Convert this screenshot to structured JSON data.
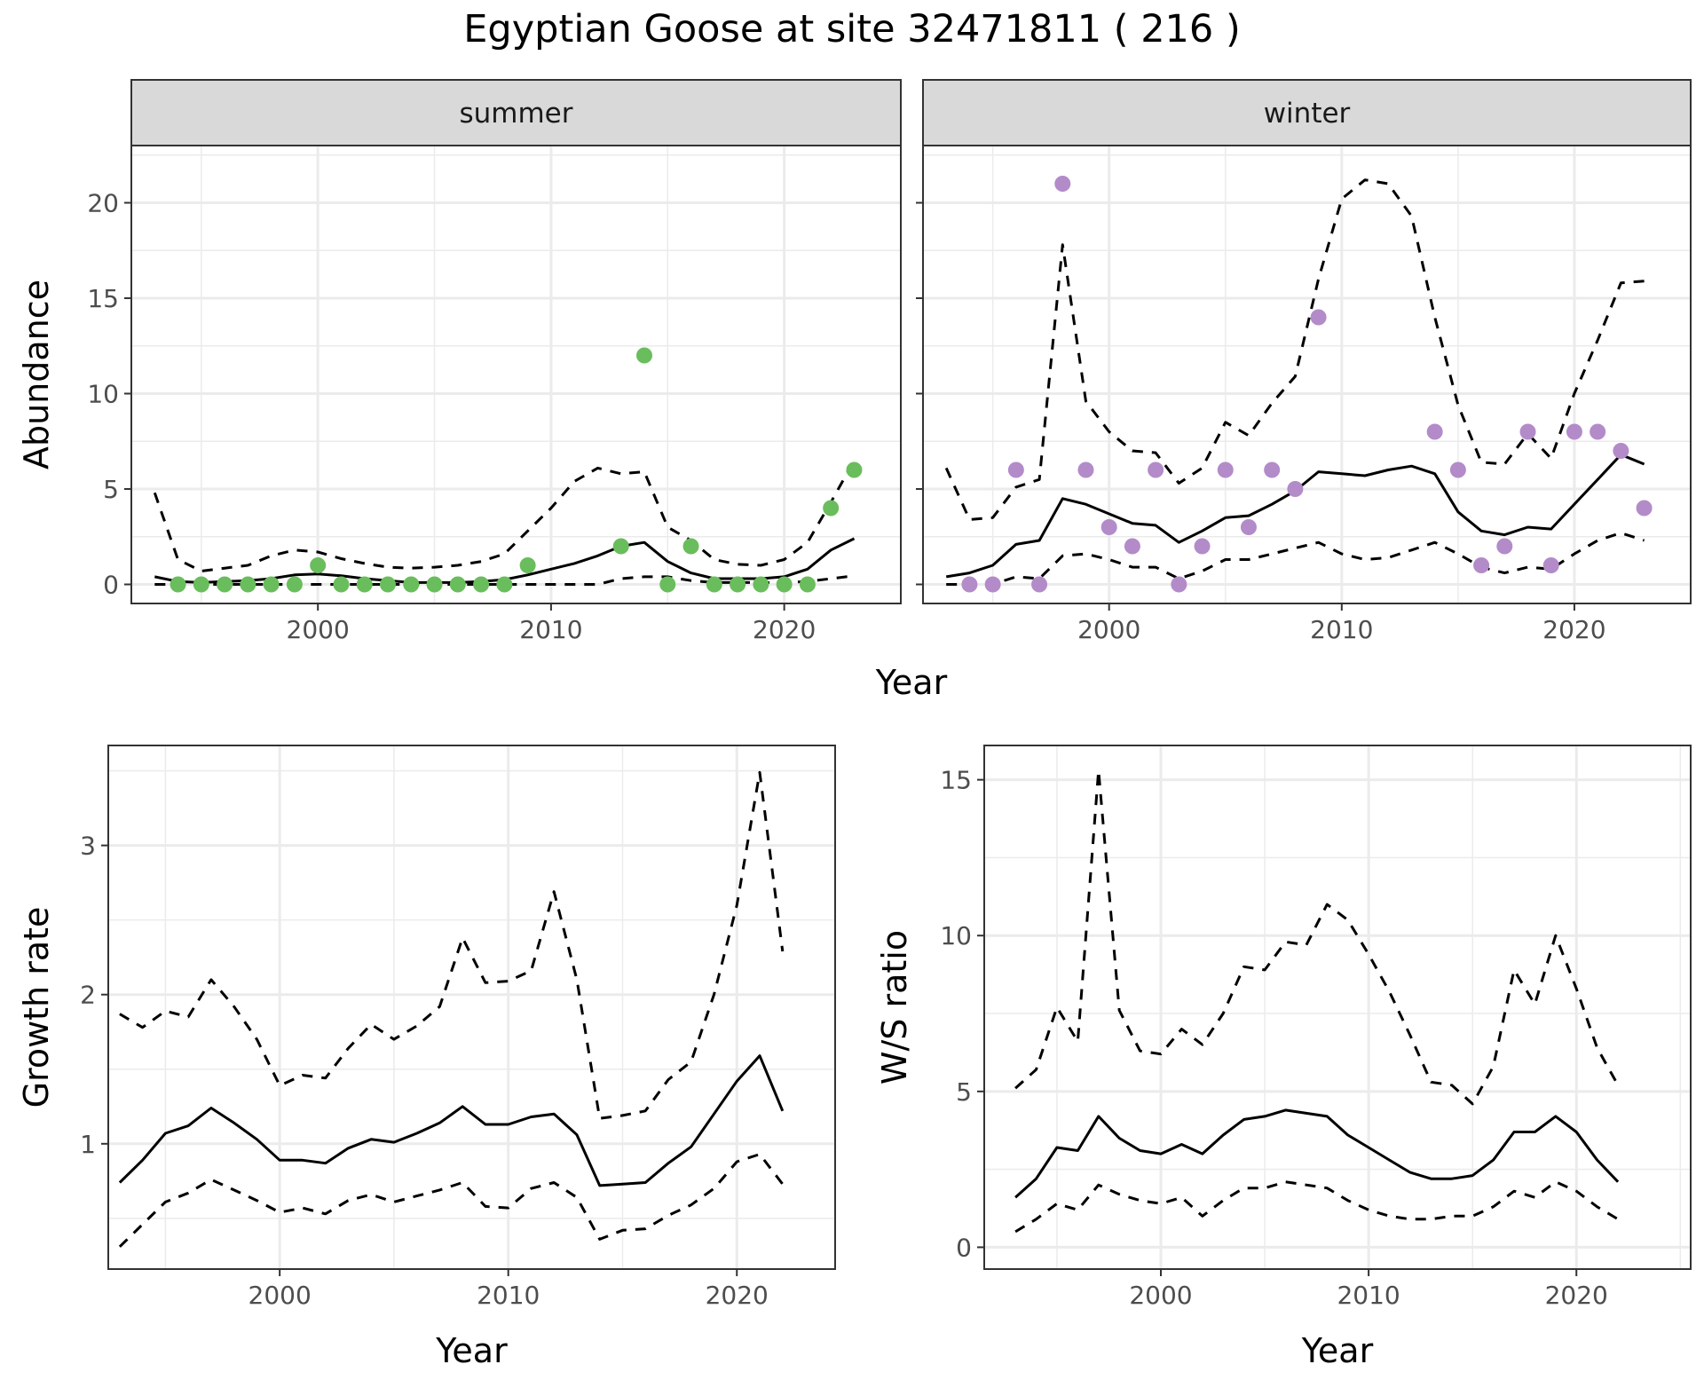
{
  "figure_title": "Egyptian Goose at site 32471811 ( 216 )",
  "colors": {
    "summer_points": "#6ABD5C",
    "winter_points": "#B38BC9",
    "grid": "#EBEBEB",
    "strip_bg": "#D9D9D9",
    "lines": "#000000"
  },
  "chart_data": [
    {
      "type": "line",
      "facet": "summer",
      "xlabel": "Year",
      "ylabel": "Abundance",
      "xlim": [
        1992,
        2025
      ],
      "ylim": [
        -1,
        23
      ],
      "xticks": [
        2000,
        2010,
        2020
      ],
      "yticks": [
        0,
        5,
        10,
        15,
        20
      ],
      "point_color": "#6ABD5C",
      "points": {
        "x": [
          1994,
          1995,
          1996,
          1997,
          1998,
          1999,
          2000,
          2001,
          2002,
          2003,
          2004,
          2005,
          2006,
          2007,
          2008,
          2009,
          2013,
          2014,
          2015,
          2016,
          2017,
          2018,
          2019,
          2020,
          2021,
          2022,
          2023
        ],
        "y": [
          0,
          0,
          0,
          0,
          0,
          0,
          1,
          0,
          0,
          0,
          0,
          0,
          0,
          0,
          0,
          1,
          2,
          12,
          0,
          2,
          0,
          0,
          0,
          0,
          0,
          4,
          6
        ]
      },
      "x": [
        1993,
        1994,
        1995,
        1996,
        1997,
        1998,
        1999,
        2000,
        2001,
        2002,
        2003,
        2004,
        2005,
        2006,
        2007,
        2008,
        2009,
        2010,
        2011,
        2012,
        2013,
        2014,
        2015,
        2016,
        2017,
        2018,
        2019,
        2020,
        2021,
        2022,
        2023
      ],
      "fit": [
        0.4,
        0.15,
        0.1,
        0.15,
        0.2,
        0.3,
        0.5,
        0.55,
        0.45,
        0.3,
        0.2,
        0.1,
        0.1,
        0.1,
        0.15,
        0.25,
        0.5,
        0.8,
        1.1,
        1.5,
        2.0,
        2.2,
        1.2,
        0.6,
        0.3,
        0.3,
        0.3,
        0.4,
        0.8,
        1.8,
        2.4
      ],
      "upper": [
        4.8,
        1.3,
        0.7,
        0.85,
        1.0,
        1.5,
        1.8,
        1.7,
        1.35,
        1.1,
        0.9,
        0.85,
        0.9,
        1.0,
        1.2,
        1.6,
        2.8,
        4.0,
        5.4,
        6.1,
        5.8,
        5.9,
        3.0,
        2.3,
        1.3,
        1.05,
        1.0,
        1.3,
        2.2,
        4.3,
        6.5
      ],
      "lower": [
        0,
        0,
        0,
        0,
        0,
        0,
        0,
        0,
        0,
        0,
        0,
        0,
        0,
        0,
        0,
        0,
        0,
        0,
        0,
        0,
        0.3,
        0.4,
        0.4,
        0.2,
        0.1,
        0.1,
        0.1,
        0.1,
        0.15,
        0.3,
        0.45
      ]
    },
    {
      "type": "line",
      "facet": "winter",
      "xlabel": "Year",
      "ylabel": "Abundance",
      "xlim": [
        1992,
        2025
      ],
      "ylim": [
        -1,
        23
      ],
      "xticks": [
        2000,
        2010,
        2020
      ],
      "yticks": [
        0,
        5,
        10,
        15,
        20
      ],
      "point_color": "#B38BC9",
      "points": {
        "x": [
          1994,
          1995,
          1996,
          1997,
          1998,
          1999,
          2000,
          2001,
          2002,
          2003,
          2004,
          2005,
          2006,
          2007,
          2008,
          2009,
          2014,
          2015,
          2016,
          2017,
          2018,
          2019,
          2020,
          2021,
          2022,
          2023
        ],
        "y": [
          0,
          0,
          6,
          0,
          21,
          6,
          3,
          2,
          6,
          0,
          2,
          6,
          3,
          6,
          5,
          14,
          8,
          6,
          1,
          2,
          8,
          1,
          8,
          8,
          7,
          4
        ]
      },
      "x": [
        1993,
        1994,
        1995,
        1996,
        1997,
        1998,
        1999,
        2000,
        2001,
        2002,
        2003,
        2004,
        2005,
        2006,
        2007,
        2008,
        2009,
        2010,
        2011,
        2012,
        2013,
        2014,
        2015,
        2016,
        2017,
        2018,
        2019,
        2020,
        2021,
        2022,
        2023
      ],
      "fit": [
        0.4,
        0.6,
        1.0,
        2.1,
        2.3,
        4.5,
        4.2,
        3.7,
        3.2,
        3.1,
        2.2,
        2.8,
        3.5,
        3.6,
        4.2,
        4.9,
        5.9,
        5.8,
        5.7,
        6.0,
        6.2,
        5.8,
        3.8,
        2.8,
        2.6,
        3.0,
        2.9,
        4.2,
        5.5,
        6.8,
        6.3
      ],
      "upper": [
        6.1,
        3.4,
        3.5,
        5.1,
        5.5,
        17.8,
        9.6,
        8.0,
        7.0,
        6.9,
        5.3,
        6.1,
        8.5,
        7.8,
        9.5,
        10.9,
        16.0,
        20.2,
        21.2,
        21.0,
        19.3,
        14.0,
        9.4,
        6.4,
        6.3,
        7.9,
        6.6,
        10.0,
        12.8,
        15.8,
        15.9
      ],
      "lower": [
        0,
        0,
        0,
        0.4,
        0.3,
        1.5,
        1.6,
        1.3,
        0.9,
        0.9,
        0.3,
        0.7,
        1.3,
        1.3,
        1.6,
        1.9,
        2.2,
        1.6,
        1.3,
        1.4,
        1.8,
        2.2,
        1.6,
        0.9,
        0.6,
        0.9,
        0.8,
        1.6,
        2.3,
        2.7,
        2.3
      ]
    },
    {
      "type": "line",
      "xlabel": "Year",
      "ylabel": "Growth rate",
      "xlim": [
        1992.5,
        2024.3
      ],
      "ylim": [
        0.16,
        3.67
      ],
      "xticks": [
        2000,
        2010,
        2020
      ],
      "yticks": [
        1,
        2,
        3
      ],
      "x": [
        1993,
        1994,
        1995,
        1996,
        1997,
        1998,
        1999,
        2000,
        2001,
        2002,
        2003,
        2004,
        2005,
        2006,
        2007,
        2008,
        2009,
        2010,
        2011,
        2012,
        2013,
        2014,
        2015,
        2016,
        2017,
        2018,
        2019,
        2020,
        2021,
        2022
      ],
      "fit": [
        0.74,
        0.89,
        1.07,
        1.12,
        1.24,
        1.14,
        1.03,
        0.89,
        0.89,
        0.87,
        0.97,
        1.03,
        1.01,
        1.07,
        1.14,
        1.25,
        1.13,
        1.13,
        1.18,
        1.2,
        1.06,
        0.72,
        0.73,
        0.74,
        0.87,
        0.98,
        1.2,
        1.42,
        1.59,
        1.22
      ],
      "upper": [
        1.87,
        1.78,
        1.89,
        1.85,
        2.1,
        1.92,
        1.7,
        1.39,
        1.46,
        1.44,
        1.64,
        1.8,
        1.7,
        1.79,
        1.92,
        2.38,
        2.08,
        2.09,
        2.16,
        2.69,
        2.1,
        1.17,
        1.19,
        1.22,
        1.43,
        1.55,
        2.0,
        2.6,
        3.49,
        2.29
      ],
      "lower": [
        0.31,
        0.46,
        0.61,
        0.67,
        0.76,
        0.69,
        0.62,
        0.54,
        0.57,
        0.53,
        0.62,
        0.66,
        0.61,
        0.65,
        0.69,
        0.74,
        0.58,
        0.57,
        0.7,
        0.74,
        0.64,
        0.36,
        0.42,
        0.43,
        0.52,
        0.59,
        0.7,
        0.88,
        0.93,
        0.73
      ]
    },
    {
      "type": "line",
      "xlabel": "Year",
      "ylabel": "W/S ratio",
      "xlim": [
        1991.5,
        2025.5
      ],
      "ylim": [
        -0.7,
        16.1
      ],
      "xticks": [
        2000,
        2010,
        2020
      ],
      "yticks": [
        0,
        5,
        10,
        15
      ],
      "x": [
        1993,
        1994,
        1995,
        1996,
        1997,
        1998,
        1999,
        2000,
        2001,
        2002,
        2003,
        2004,
        2005,
        2006,
        2007,
        2008,
        2009,
        2010,
        2011,
        2012,
        2013,
        2014,
        2015,
        2016,
        2017,
        2018,
        2019,
        2020,
        2021,
        2022
      ],
      "fit": [
        1.6,
        2.2,
        3.2,
        3.1,
        4.2,
        3.5,
        3.1,
        3.0,
        3.3,
        3.0,
        3.6,
        4.1,
        4.2,
        4.4,
        4.3,
        4.2,
        3.6,
        3.2,
        2.8,
        2.4,
        2.2,
        2.2,
        2.3,
        2.8,
        3.7,
        3.7,
        4.2,
        3.7,
        2.8,
        2.1
      ],
      "upper": [
        5.1,
        5.7,
        7.7,
        6.6,
        15.3,
        7.6,
        6.3,
        6.2,
        7.0,
        6.5,
        7.5,
        9.0,
        8.9,
        9.8,
        9.7,
        11.0,
        10.5,
        9.4,
        8.2,
        6.8,
        5.3,
        5.2,
        4.6,
        5.8,
        8.9,
        7.8,
        10.0,
        8.3,
        6.4,
        5.2
      ],
      "lower": [
        0.5,
        0.9,
        1.4,
        1.2,
        2.0,
        1.7,
        1.5,
        1.4,
        1.6,
        1.0,
        1.5,
        1.9,
        1.9,
        2.1,
        2.0,
        1.9,
        1.5,
        1.2,
        1.0,
        0.9,
        0.9,
        1.0,
        1.0,
        1.3,
        1.8,
        1.6,
        2.1,
        1.8,
        1.3,
        0.9
      ]
    }
  ]
}
